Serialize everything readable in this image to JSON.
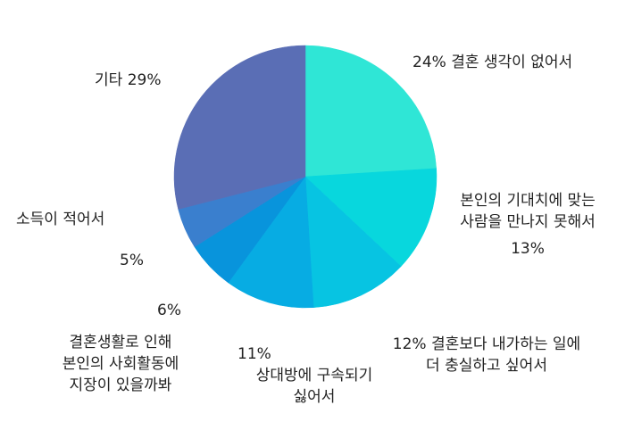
{
  "chart_data": {
    "type": "pie",
    "title": "",
    "start": "top",
    "direction": "clockwise",
    "slices": [
      {
        "percent_label": "24%",
        "label_lines": [
          "결혼 생각이 없어서"
        ],
        "value": 24,
        "color": "#2fe6d6"
      },
      {
        "percent_label": "13%",
        "label_lines": [
          "본인의 기대치에 맞는",
          "사람을 만나지 못해서"
        ],
        "value": 13,
        "color": "#08d7dd"
      },
      {
        "percent_label": "12%",
        "label_lines": [
          "결혼보다 내가하는 일에",
          "더 충실하고 싶어서"
        ],
        "value": 12,
        "color": "#07c4e2"
      },
      {
        "percent_label": "11%",
        "label_lines": [
          "상대방에 구속되기",
          "싫어서"
        ],
        "value": 11,
        "color": "#07ace3"
      },
      {
        "percent_label": "6%",
        "label_lines": [
          "결혼생활로 인해",
          "본인의 사회활동에",
          "지장이 있을까봐"
        ],
        "value": 6,
        "color": "#0894dc"
      },
      {
        "percent_label": "5%",
        "label_lines": [
          "소득이 적어서"
        ],
        "value": 5,
        "color": "#3a7fce"
      },
      {
        "percent_label": "29%",
        "label_lines": [
          "기타"
        ],
        "value": 29,
        "color": "#5a6eb5"
      }
    ]
  }
}
